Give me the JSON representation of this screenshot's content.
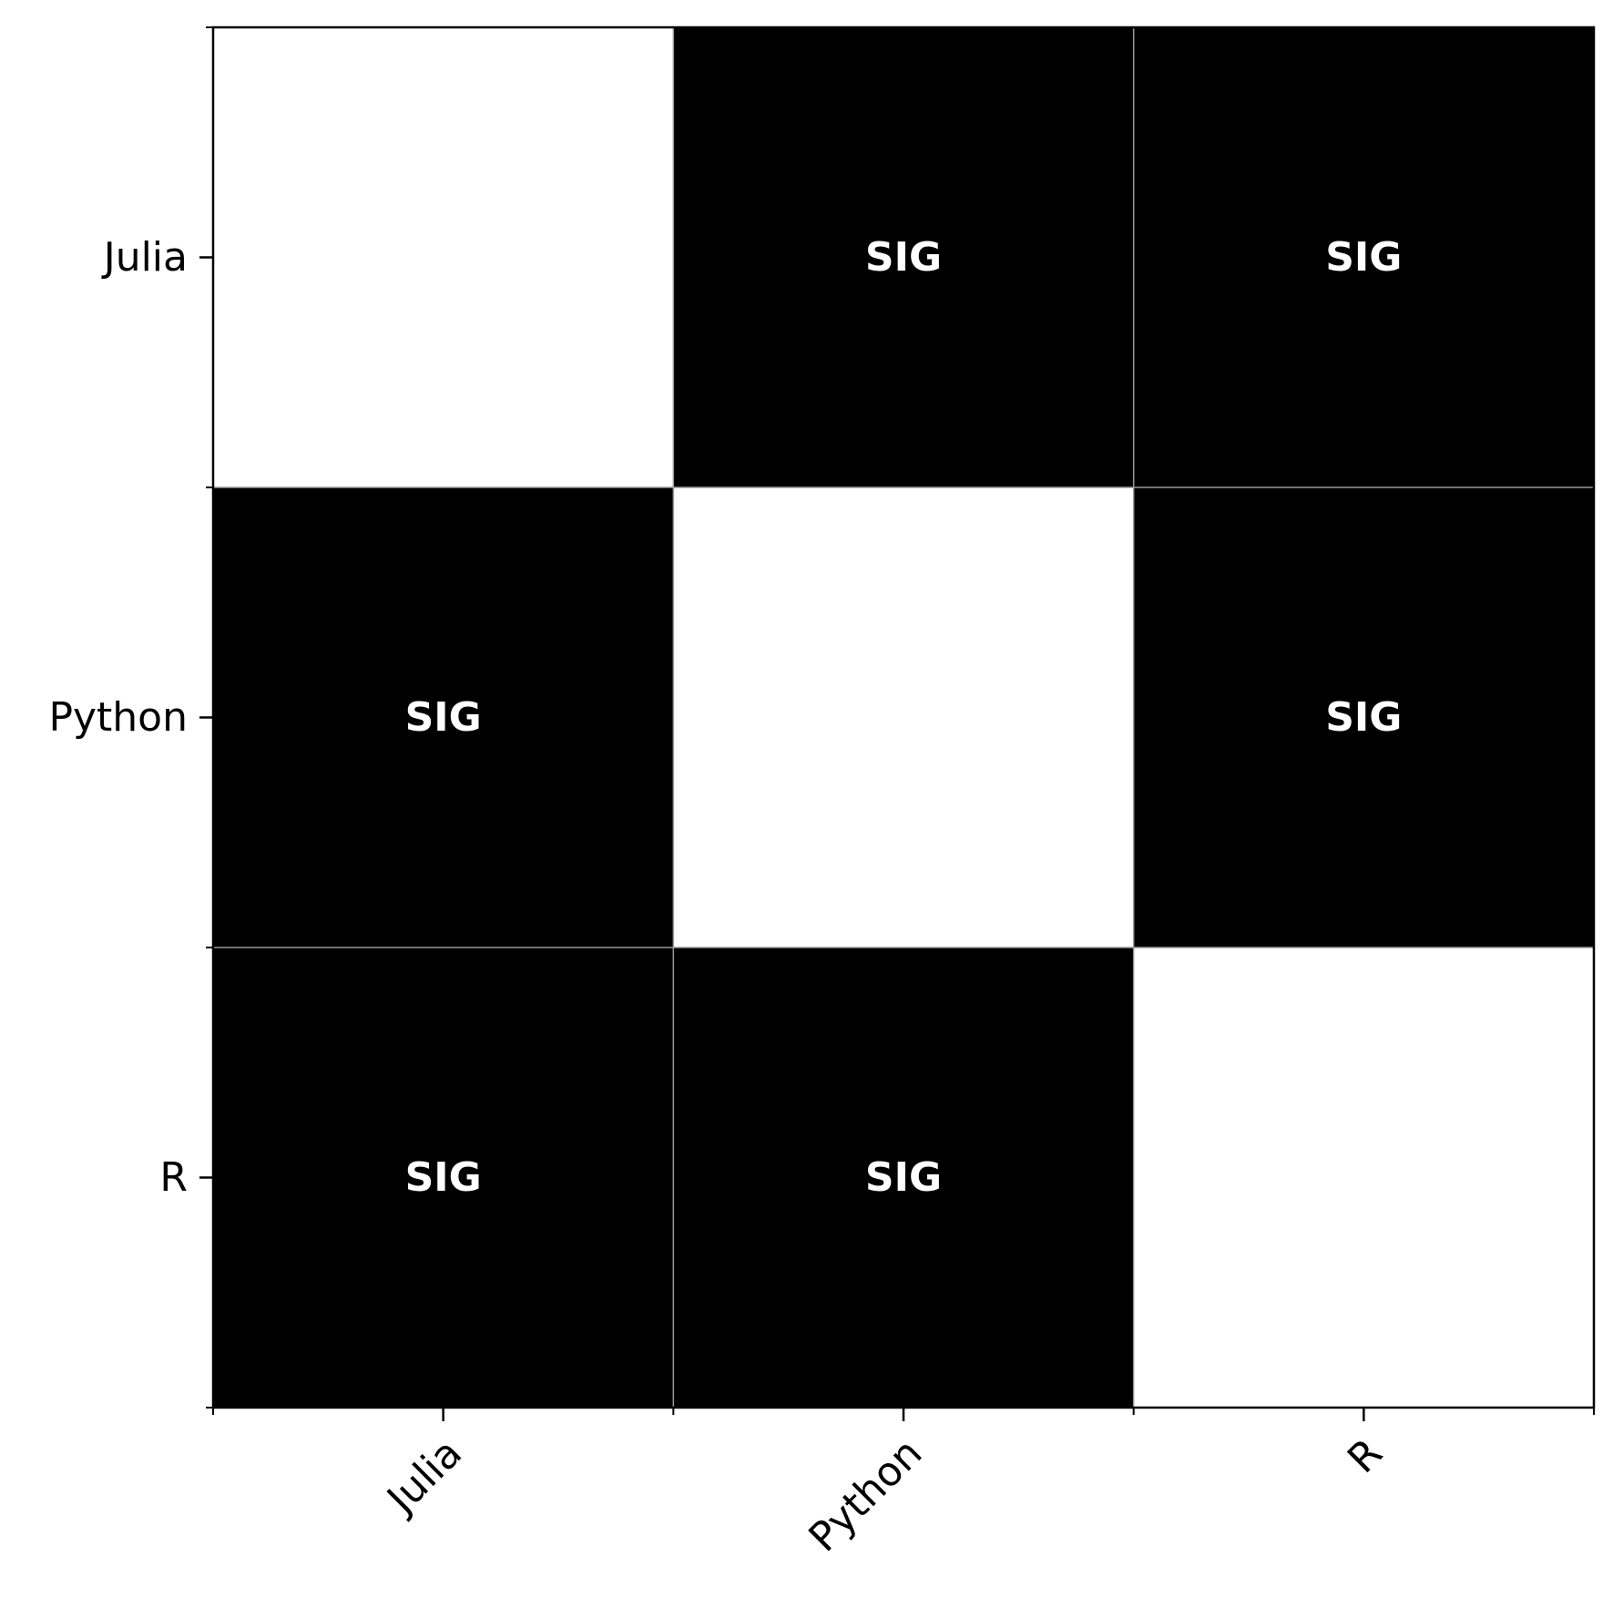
{
  "chart_data": {
    "type": "heatmap",
    "title": "",
    "xlabel": "",
    "ylabel": "",
    "x_categories": [
      "Julia",
      "Python",
      "R"
    ],
    "y_categories": [
      "Julia",
      "Python",
      "R"
    ],
    "matrix": [
      [
        0,
        1,
        1
      ],
      [
        1,
        0,
        1
      ],
      [
        1,
        1,
        0
      ]
    ],
    "cell_labels": [
      [
        "",
        "SIG",
        "SIG"
      ],
      [
        "SIG",
        "",
        "SIG"
      ],
      [
        "SIG",
        "SIG",
        ""
      ]
    ],
    "x_tick_rotation_deg": 45,
    "grid": true,
    "colors": {
      "significant": "#000000",
      "not_significant": "#ffffff",
      "cell_text": "#ffffff",
      "grid_line": "#999999",
      "axis": "#000000"
    }
  }
}
